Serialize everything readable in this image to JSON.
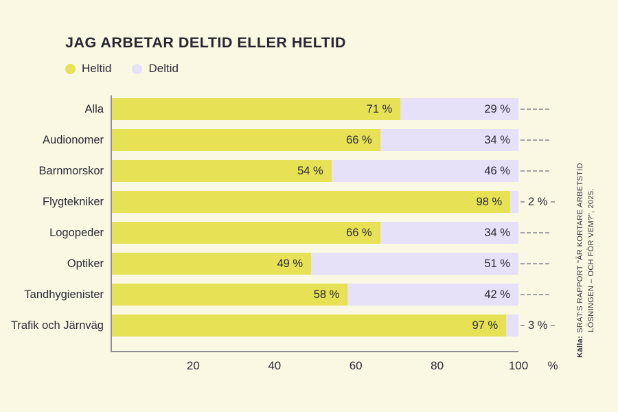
{
  "title": "JAG ARBETAR DELTID ELLER HELTID",
  "legend": [
    {
      "label": "Heltid",
      "color": "#E6E155"
    },
    {
      "label": "Deltid",
      "color": "#E6E0F8"
    }
  ],
  "source": {
    "prefix": "Källa:",
    "line1": "SRAT:S RAPPORT \"ÄR KORTARE ARBETSTID",
    "line2": "LÖSNINGEN – OCH FÖR VEM?\", 2025."
  },
  "chart_data": {
    "type": "bar",
    "orientation": "horizontal",
    "stacked": true,
    "title": "JAG ARBETAR DELTID ELLER HELTID",
    "categories": [
      "Alla",
      "Audionomer",
      "Barnmorskor",
      "Flygtekniker",
      "Logopeder",
      "Optiker",
      "Tandhygienister",
      "Trafik och Järnväg"
    ],
    "series": [
      {
        "name": "Heltid",
        "color": "#E6E155",
        "values": [
          71,
          66,
          54,
          98,
          66,
          49,
          58,
          97
        ]
      },
      {
        "name": "Deltid",
        "color": "#E6E0F8",
        "values": [
          29,
          34,
          46,
          2,
          34,
          51,
          42,
          3
        ]
      }
    ],
    "value_suffix": " %",
    "xlabel": "%",
    "xticks": [
      20,
      40,
      60,
      80,
      100
    ],
    "xlim": [
      0,
      100
    ],
    "grid": false,
    "legend_position": "top-left"
  },
  "colors": {
    "background": "#FAF8E3",
    "text": "#2B2935",
    "axis": "#8E8E8E",
    "leader": "#A3A3A3"
  }
}
